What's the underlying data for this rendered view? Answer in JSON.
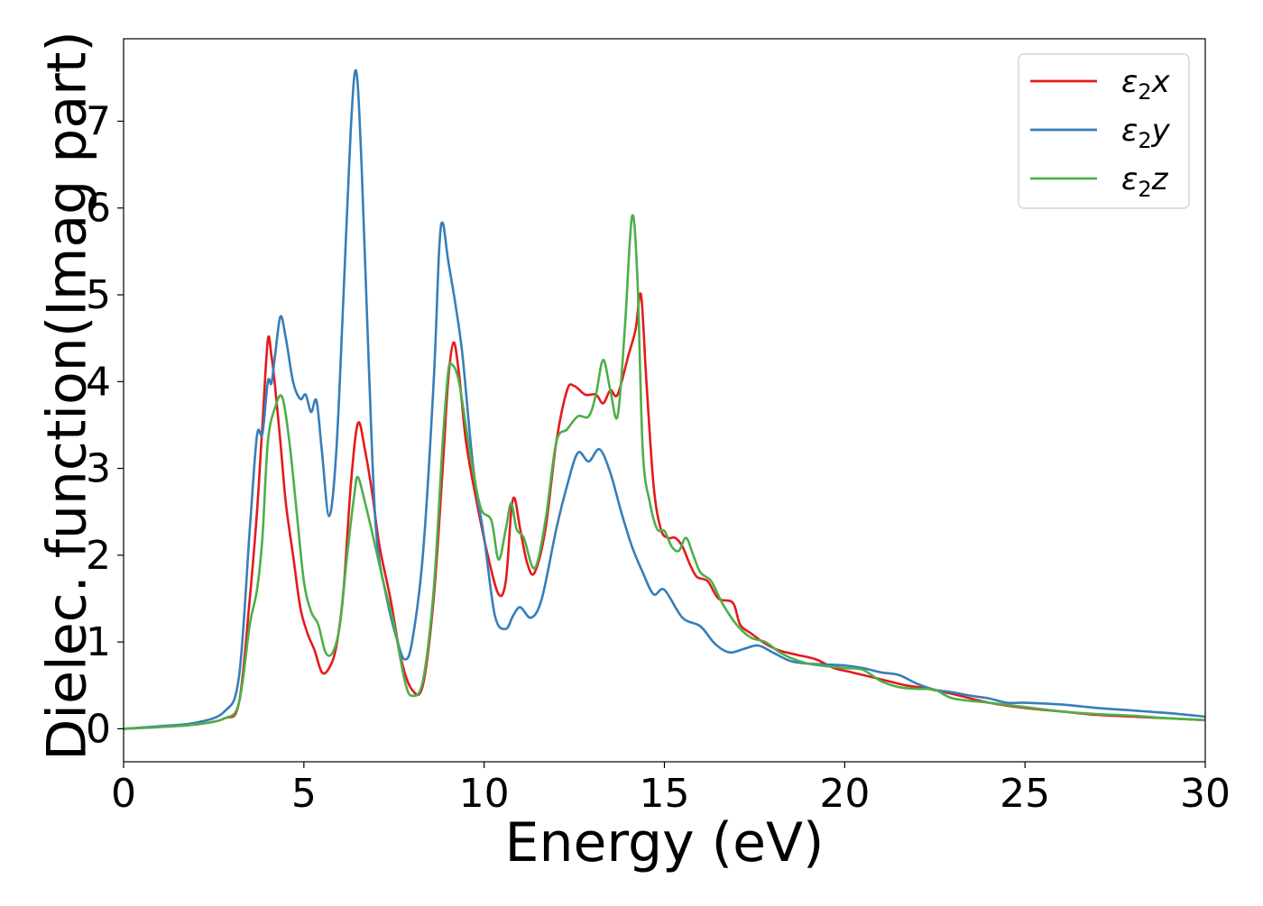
{
  "chart_data": {
    "type": "line",
    "title": "",
    "xlabel": "Energy (eV)",
    "ylabel": "Dielec. function(Imag part)",
    "xlim": [
      0,
      30
    ],
    "ylim": [
      -0.38,
      7.95
    ],
    "xticks": [
      0,
      5,
      10,
      15,
      20,
      25,
      30
    ],
    "xtick_labels": [
      "0",
      "5",
      "10",
      "15",
      "20",
      "25",
      "30"
    ],
    "yticks": [
      0,
      1,
      2,
      3,
      4,
      5,
      6,
      7
    ],
    "ytick_labels": [
      "0",
      "1",
      "2",
      "3",
      "4",
      "5",
      "6",
      "7"
    ],
    "grid": false,
    "legend_position": "top-right",
    "series": [
      {
        "name": "ε2x",
        "legend_main": "ε",
        "legend_sub": "2",
        "legend_suffix": "x",
        "color": "#e41a1c",
        "points": [
          [
            0,
            0
          ],
          [
            1,
            0.02
          ],
          [
            2,
            0.05
          ],
          [
            2.8,
            0.12
          ],
          [
            3.2,
            0.3
          ],
          [
            3.5,
            1.5
          ],
          [
            3.7,
            2.5
          ],
          [
            3.85,
            3.5
          ],
          [
            4.0,
            4.48
          ],
          [
            4.1,
            4.3
          ],
          [
            4.2,
            3.95
          ],
          [
            4.35,
            3.3
          ],
          [
            4.5,
            2.6
          ],
          [
            4.7,
            2.0
          ],
          [
            4.9,
            1.4
          ],
          [
            5.1,
            1.1
          ],
          [
            5.3,
            0.9
          ],
          [
            5.5,
            0.65
          ],
          [
            5.7,
            0.7
          ],
          [
            5.9,
            0.95
          ],
          [
            6.1,
            1.6
          ],
          [
            6.3,
            2.8
          ],
          [
            6.5,
            3.52
          ],
          [
            6.7,
            3.2
          ],
          [
            6.9,
            2.7
          ],
          [
            7.1,
            2.1
          ],
          [
            7.4,
            1.5
          ],
          [
            7.7,
            0.8
          ],
          [
            8.0,
            0.45
          ],
          [
            8.3,
            0.5
          ],
          [
            8.6,
            1.5
          ],
          [
            8.85,
            3.0
          ],
          [
            9.0,
            4.0
          ],
          [
            9.15,
            4.45
          ],
          [
            9.3,
            4.1
          ],
          [
            9.5,
            3.3
          ],
          [
            9.8,
            2.6
          ],
          [
            10.1,
            2.0
          ],
          [
            10.4,
            1.55
          ],
          [
            10.6,
            1.7
          ],
          [
            10.75,
            2.5
          ],
          [
            10.85,
            2.65
          ],
          [
            11.0,
            2.3
          ],
          [
            11.2,
            1.9
          ],
          [
            11.4,
            1.8
          ],
          [
            11.7,
            2.3
          ],
          [
            12.0,
            3.3
          ],
          [
            12.3,
            3.9
          ],
          [
            12.5,
            3.95
          ],
          [
            12.8,
            3.85
          ],
          [
            13.1,
            3.85
          ],
          [
            13.3,
            3.75
          ],
          [
            13.5,
            3.9
          ],
          [
            13.7,
            3.85
          ],
          [
            14.0,
            4.3
          ],
          [
            14.2,
            4.6
          ],
          [
            14.35,
            5.0
          ],
          [
            14.5,
            4.0
          ],
          [
            14.7,
            2.8
          ],
          [
            14.9,
            2.3
          ],
          [
            15.1,
            2.2
          ],
          [
            15.3,
            2.2
          ],
          [
            15.5,
            2.1
          ],
          [
            15.7,
            1.9
          ],
          [
            15.9,
            1.75
          ],
          [
            16.2,
            1.7
          ],
          [
            16.5,
            1.5
          ],
          [
            16.9,
            1.45
          ],
          [
            17.1,
            1.2
          ],
          [
            17.4,
            1.1
          ],
          [
            17.8,
            0.98
          ],
          [
            18.2,
            0.9
          ],
          [
            18.7,
            0.85
          ],
          [
            19.2,
            0.8
          ],
          [
            19.7,
            0.7
          ],
          [
            20.2,
            0.65
          ],
          [
            20.7,
            0.6
          ],
          [
            21.2,
            0.55
          ],
          [
            21.7,
            0.5
          ],
          [
            22.2,
            0.47
          ],
          [
            23.0,
            0.4
          ],
          [
            24.0,
            0.3
          ],
          [
            25.0,
            0.24
          ],
          [
            26.0,
            0.2
          ],
          [
            27.0,
            0.16
          ],
          [
            28.0,
            0.14
          ],
          [
            29.0,
            0.12
          ],
          [
            30.0,
            0.1
          ]
        ]
      },
      {
        "name": "ε2y",
        "legend_main": "ε",
        "legend_sub": "2",
        "legend_suffix": "y",
        "color": "#377eb8",
        "points": [
          [
            0,
            0
          ],
          [
            1,
            0.03
          ],
          [
            2,
            0.07
          ],
          [
            2.8,
            0.2
          ],
          [
            3.2,
            0.6
          ],
          [
            3.5,
            2.3
          ],
          [
            3.7,
            3.38
          ],
          [
            3.85,
            3.4
          ],
          [
            4.0,
            4.0
          ],
          [
            4.1,
            3.98
          ],
          [
            4.2,
            4.3
          ],
          [
            4.35,
            4.75
          ],
          [
            4.5,
            4.5
          ],
          [
            4.7,
            4.0
          ],
          [
            4.9,
            3.8
          ],
          [
            5.05,
            3.85
          ],
          [
            5.2,
            3.65
          ],
          [
            5.35,
            3.78
          ],
          [
            5.5,
            3.2
          ],
          [
            5.7,
            2.45
          ],
          [
            5.9,
            3.2
          ],
          [
            6.1,
            5.0
          ],
          [
            6.3,
            6.9
          ],
          [
            6.45,
            7.58
          ],
          [
            6.6,
            6.5
          ],
          [
            6.8,
            4.2
          ],
          [
            7.0,
            2.3
          ],
          [
            7.3,
            1.5
          ],
          [
            7.6,
            1.0
          ],
          [
            7.8,
            0.8
          ],
          [
            8.0,
            1.0
          ],
          [
            8.3,
            2.0
          ],
          [
            8.6,
            4.0
          ],
          [
            8.75,
            5.5
          ],
          [
            8.85,
            5.83
          ],
          [
            9.0,
            5.4
          ],
          [
            9.2,
            4.9
          ],
          [
            9.4,
            4.3
          ],
          [
            9.7,
            3.0
          ],
          [
            10.0,
            2.2
          ],
          [
            10.3,
            1.3
          ],
          [
            10.6,
            1.15
          ],
          [
            10.8,
            1.3
          ],
          [
            11.0,
            1.4
          ],
          [
            11.3,
            1.28
          ],
          [
            11.6,
            1.5
          ],
          [
            12.0,
            2.3
          ],
          [
            12.3,
            2.8
          ],
          [
            12.6,
            3.18
          ],
          [
            12.9,
            3.08
          ],
          [
            13.2,
            3.22
          ],
          [
            13.5,
            2.95
          ],
          [
            13.8,
            2.5
          ],
          [
            14.1,
            2.1
          ],
          [
            14.4,
            1.8
          ],
          [
            14.7,
            1.55
          ],
          [
            15.0,
            1.6
          ],
          [
            15.5,
            1.28
          ],
          [
            16.0,
            1.18
          ],
          [
            16.4,
            0.98
          ],
          [
            16.8,
            0.88
          ],
          [
            17.2,
            0.92
          ],
          [
            17.6,
            0.96
          ],
          [
            18.0,
            0.88
          ],
          [
            18.5,
            0.78
          ],
          [
            19.0,
            0.75
          ],
          [
            19.5,
            0.74
          ],
          [
            20.0,
            0.73
          ],
          [
            20.5,
            0.7
          ],
          [
            21.0,
            0.65
          ],
          [
            21.5,
            0.62
          ],
          [
            22.0,
            0.52
          ],
          [
            22.5,
            0.45
          ],
          [
            23.0,
            0.42
          ],
          [
            23.5,
            0.38
          ],
          [
            24.0,
            0.35
          ],
          [
            24.5,
            0.3
          ],
          [
            25.0,
            0.3
          ],
          [
            26.0,
            0.28
          ],
          [
            27.0,
            0.24
          ],
          [
            28.0,
            0.21
          ],
          [
            29.0,
            0.18
          ],
          [
            30.0,
            0.14
          ]
        ]
      },
      {
        "name": "ε2z",
        "legend_main": "ε",
        "legend_sub": "2",
        "legend_suffix": "z",
        "color": "#4daf4a",
        "points": [
          [
            0,
            0
          ],
          [
            1,
            0.02
          ],
          [
            2,
            0.05
          ],
          [
            2.8,
            0.12
          ],
          [
            3.2,
            0.3
          ],
          [
            3.5,
            1.2
          ],
          [
            3.7,
            1.6
          ],
          [
            3.85,
            2.2
          ],
          [
            4.0,
            3.3
          ],
          [
            4.2,
            3.7
          ],
          [
            4.4,
            3.82
          ],
          [
            4.6,
            3.3
          ],
          [
            4.8,
            2.5
          ],
          [
            5.0,
            1.7
          ],
          [
            5.2,
            1.35
          ],
          [
            5.4,
            1.2
          ],
          [
            5.6,
            0.88
          ],
          [
            5.8,
            0.88
          ],
          [
            6.0,
            1.2
          ],
          [
            6.2,
            2.0
          ],
          [
            6.4,
            2.7
          ],
          [
            6.5,
            2.9
          ],
          [
            6.7,
            2.6
          ],
          [
            6.9,
            2.25
          ],
          [
            7.2,
            1.7
          ],
          [
            7.5,
            1.2
          ],
          [
            7.8,
            0.55
          ],
          [
            8.0,
            0.38
          ],
          [
            8.3,
            0.55
          ],
          [
            8.6,
            1.6
          ],
          [
            8.85,
            3.3
          ],
          [
            9.0,
            4.1
          ],
          [
            9.1,
            4.2
          ],
          [
            9.3,
            4.0
          ],
          [
            9.6,
            3.2
          ],
          [
            9.9,
            2.55
          ],
          [
            10.2,
            2.4
          ],
          [
            10.4,
            1.95
          ],
          [
            10.6,
            2.3
          ],
          [
            10.75,
            2.6
          ],
          [
            10.9,
            2.3
          ],
          [
            11.1,
            2.2
          ],
          [
            11.4,
            1.85
          ],
          [
            11.7,
            2.4
          ],
          [
            12.0,
            3.3
          ],
          [
            12.3,
            3.45
          ],
          [
            12.6,
            3.6
          ],
          [
            12.9,
            3.6
          ],
          [
            13.1,
            3.85
          ],
          [
            13.3,
            4.25
          ],
          [
            13.5,
            3.9
          ],
          [
            13.7,
            3.6
          ],
          [
            13.9,
            4.6
          ],
          [
            14.1,
            5.9
          ],
          [
            14.25,
            5.2
          ],
          [
            14.4,
            3.2
          ],
          [
            14.6,
            2.6
          ],
          [
            14.8,
            2.3
          ],
          [
            15.0,
            2.28
          ],
          [
            15.2,
            2.1
          ],
          [
            15.4,
            2.05
          ],
          [
            15.6,
            2.2
          ],
          [
            15.8,
            2.0
          ],
          [
            16.0,
            1.8
          ],
          [
            16.3,
            1.7
          ],
          [
            16.6,
            1.45
          ],
          [
            17.0,
            1.2
          ],
          [
            17.4,
            1.05
          ],
          [
            17.8,
            1.0
          ],
          [
            18.2,
            0.88
          ],
          [
            18.6,
            0.8
          ],
          [
            19.0,
            0.75
          ],
          [
            19.5,
            0.72
          ],
          [
            20.0,
            0.7
          ],
          [
            20.5,
            0.68
          ],
          [
            21.0,
            0.55
          ],
          [
            21.5,
            0.48
          ],
          [
            22.0,
            0.46
          ],
          [
            22.5,
            0.45
          ],
          [
            23.0,
            0.35
          ],
          [
            24.0,
            0.3
          ],
          [
            25.0,
            0.25
          ],
          [
            26.0,
            0.2
          ],
          [
            27.0,
            0.17
          ],
          [
            28.0,
            0.15
          ],
          [
            29.0,
            0.12
          ],
          [
            30.0,
            0.1
          ]
        ]
      }
    ]
  }
}
